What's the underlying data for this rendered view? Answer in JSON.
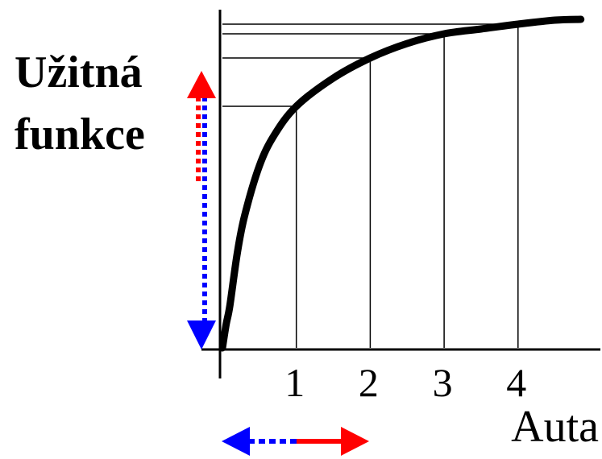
{
  "chart_data": {
    "type": "line",
    "title": "",
    "xlabel": "Auta",
    "ylabel_lines": [
      "Užitná",
      "funkce"
    ],
    "x_ticks": [
      "1",
      "2",
      "3",
      "4"
    ],
    "x": [
      0,
      0.05,
      0.1,
      0.2,
      0.3,
      0.5,
      0.7,
      1,
      1.5,
      2,
      2.5,
      3,
      3.5,
      4,
      4.5,
      4.85
    ],
    "series": [
      {
        "values": [
          0,
          29,
          52,
          117,
          164,
          226,
          264,
          300,
          335,
          360,
          378,
          390,
          396,
          402,
          407,
          408
        ]
      }
    ],
    "reference_points": [
      {
        "x": 1,
        "y": 300
      },
      {
        "x": 2,
        "y": 360
      },
      {
        "x": 3,
        "y": 390
      },
      {
        "x": 4,
        "y": 402
      }
    ],
    "xlim": [
      0,
      5
    ],
    "ylim": [
      0,
      410
    ],
    "colors": {
      "curve": "#000000",
      "increase_arrow": "#ff0000",
      "decrease_arrow": "#0000ff"
    },
    "arrows": {
      "vertical": "double-headed dotted arrow, red head up, blue head down",
      "horizontal": "double-headed arrow, blue dotted head left, red solid head right"
    }
  }
}
